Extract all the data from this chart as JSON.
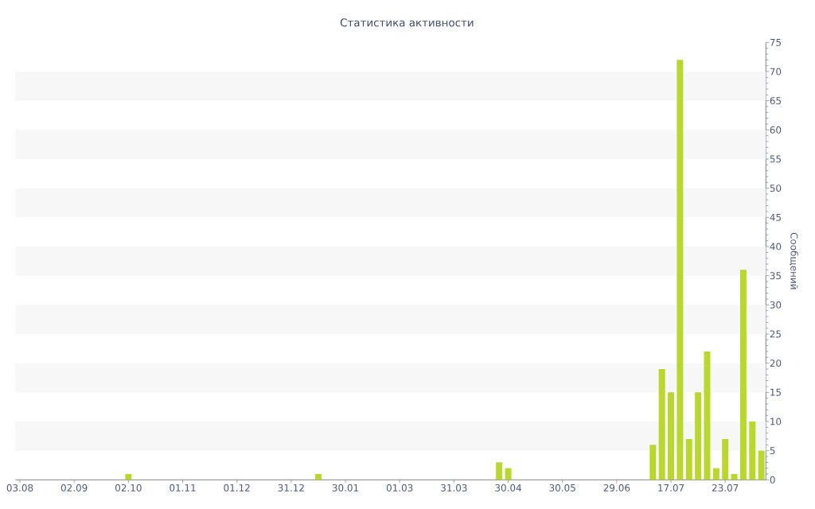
{
  "chart_data": {
    "type": "bar",
    "title": "Статистика активности",
    "ylabel": "Сообщений",
    "categories": [
      "03.08",
      null,
      null,
      null,
      null,
      null,
      "02.09",
      null,
      null,
      null,
      null,
      null,
      "02.10",
      null,
      null,
      null,
      null,
      null,
      "01.11",
      null,
      null,
      null,
      null,
      null,
      "01.12",
      null,
      null,
      null,
      null,
      null,
      "31.12",
      null,
      null,
      null,
      null,
      null,
      "30.01",
      null,
      null,
      null,
      null,
      null,
      "01.03",
      null,
      null,
      null,
      null,
      null,
      "31.03",
      null,
      null,
      null,
      null,
      null,
      "30.04",
      null,
      null,
      null,
      null,
      null,
      "30.05",
      null,
      null,
      null,
      null,
      null,
      "29.06",
      null,
      null,
      null,
      null,
      null,
      "17.07",
      null,
      null,
      null,
      null,
      null,
      "23.07",
      null,
      null,
      null,
      null
    ],
    "values": [
      null,
      null,
      null,
      null,
      null,
      null,
      null,
      null,
      null,
      null,
      null,
      null,
      1,
      null,
      null,
      null,
      null,
      null,
      null,
      null,
      null,
      null,
      null,
      null,
      null,
      null,
      null,
      null,
      null,
      null,
      null,
      null,
      null,
      1,
      null,
      null,
      null,
      null,
      null,
      null,
      null,
      null,
      null,
      null,
      null,
      null,
      null,
      null,
      null,
      null,
      null,
      null,
      null,
      3,
      2,
      null,
      null,
      null,
      null,
      null,
      null,
      null,
      null,
      null,
      null,
      null,
      null,
      null,
      null,
      null,
      6,
      19,
      15,
      72,
      7,
      15,
      22,
      2,
      7,
      1,
      36,
      10,
      5
    ],
    "color": "#b9d72d",
    "ylim": [
      0,
      75
    ],
    "yticks": [
      0,
      5,
      10,
      15,
      20,
      25,
      30,
      35,
      40,
      45,
      50,
      55,
      60,
      65,
      70,
      75
    ],
    "bands": [
      {
        "axis": "y",
        "from": 5,
        "to": 10,
        "color": "#f7f7f7"
      },
      {
        "axis": "y",
        "from": 15,
        "to": 20,
        "color": "#f7f7f7"
      },
      {
        "axis": "y",
        "from": 25,
        "to": 30,
        "color": "#f7f7f7"
      },
      {
        "axis": "y",
        "from": 35,
        "to": 40,
        "color": "#f7f7f7"
      },
      {
        "axis": "y",
        "from": 45,
        "to": 50,
        "color": "#f7f7f7"
      },
      {
        "axis": "y",
        "from": 55,
        "to": 60,
        "color": "#f7f7f7"
      },
      {
        "axis": "y",
        "from": 65,
        "to": 70,
        "color": "#f7f7f7"
      }
    ]
  }
}
